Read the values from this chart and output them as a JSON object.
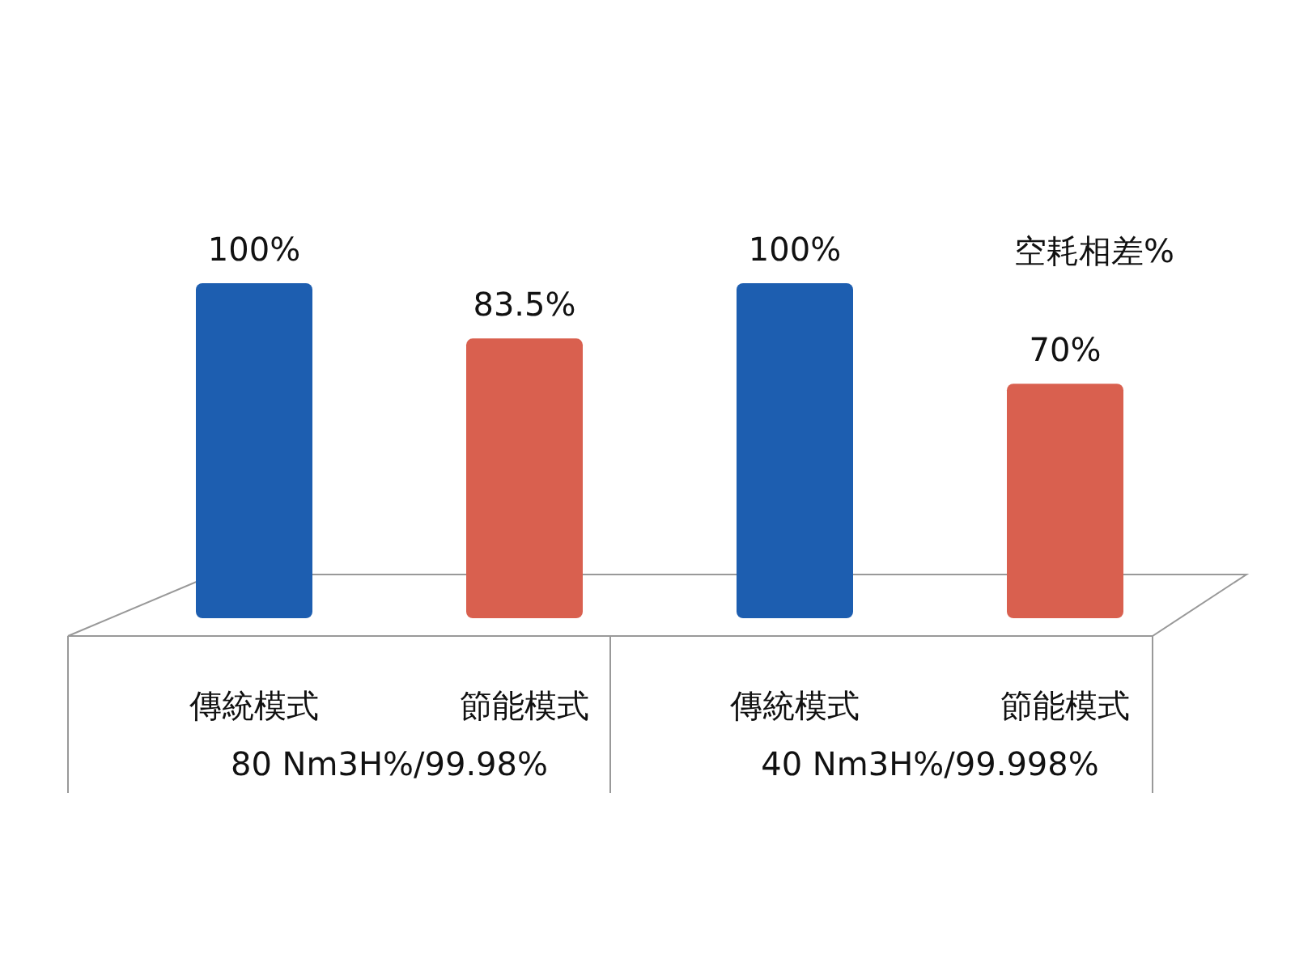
{
  "chart_data": {
    "type": "bar",
    "title": "空耗相差%",
    "categories": [
      "傳統模式",
      "節能模式",
      "傳統模式",
      "節能模式"
    ],
    "values": [
      100,
      83.5,
      100,
      70
    ],
    "colors": [
      "#1d5eb0",
      "#d9604f",
      "#1d5eb0",
      "#d9604f"
    ],
    "value_labels": [
      "100%",
      "83.5%",
      "100%",
      "70%"
    ],
    "annotations": [
      "80 Nm3H%/99.98%",
      "40 Nm3H%/99.998%"
    ]
  }
}
